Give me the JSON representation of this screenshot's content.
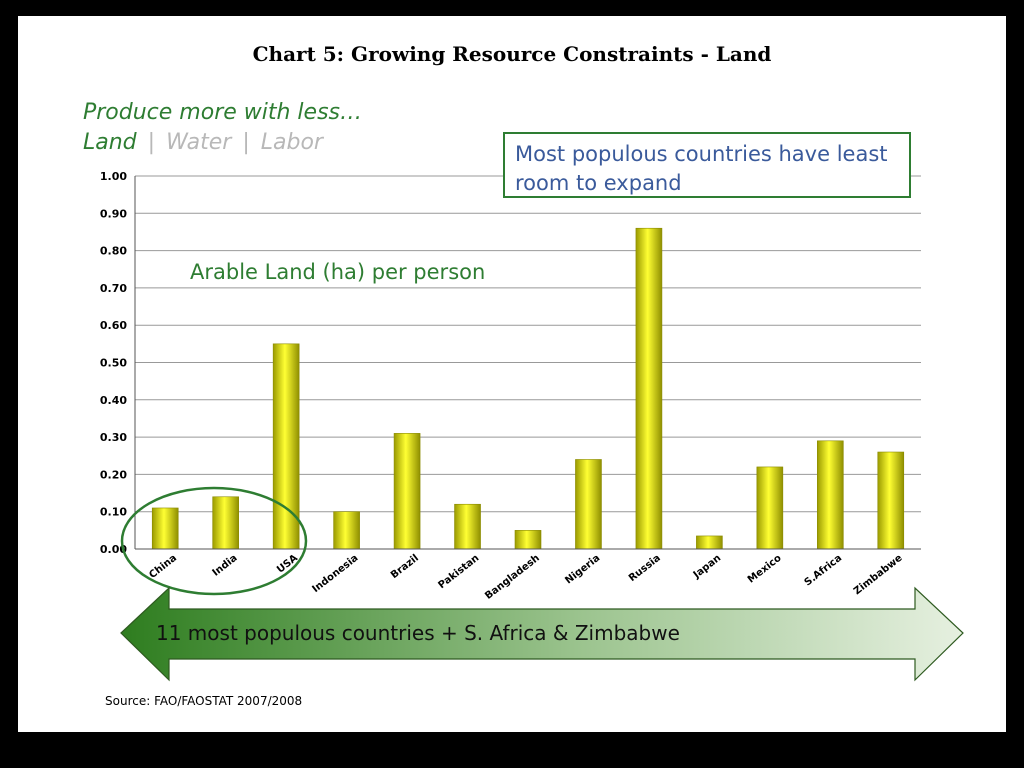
{
  "slide": {
    "title": "Chart 5: Growing Resource Constraints - Land",
    "tagline": "Produce more with less…",
    "tabs": [
      "Land",
      "Water",
      "Labor"
    ],
    "tab_separator": "|",
    "callout": "Most populous countries have least room to expand",
    "banner": "11 most populous countries + S. Africa & Zimbabwe",
    "source": "Source: FAO/FAOSTAT 2007/2008"
  },
  "chart_data": {
    "type": "bar",
    "title": "Chart 5: Growing Resource Constraints - Land",
    "annotation": "Arable Land (ha) per person",
    "categories": [
      "China",
      "India",
      "USA",
      "Indonesia",
      "Brazil",
      "Pakistan",
      "Bangladesh",
      "Nigeria",
      "Russia",
      "Japan",
      "Mexico",
      "S.Africa",
      "Zimbabwe"
    ],
    "values": [
      0.11,
      0.14,
      0.55,
      0.1,
      0.31,
      0.12,
      0.05,
      0.24,
      0.86,
      0.035,
      0.22,
      0.29,
      0.26
    ],
    "ylim": [
      0,
      1.0
    ],
    "yticks": [
      "0.00",
      "0.10",
      "0.20",
      "0.30",
      "0.40",
      "0.50",
      "0.60",
      "0.70",
      "0.80",
      "0.90",
      "1.00"
    ],
    "grid": true,
    "highlighted_categories": [
      "China",
      "India"
    ],
    "colors": {
      "bar": "#e6e600",
      "bar_edge": "#8a8a00",
      "grid": "#999999",
      "accent": "#2e7d32",
      "callout_text": "#3a5a9b"
    }
  }
}
